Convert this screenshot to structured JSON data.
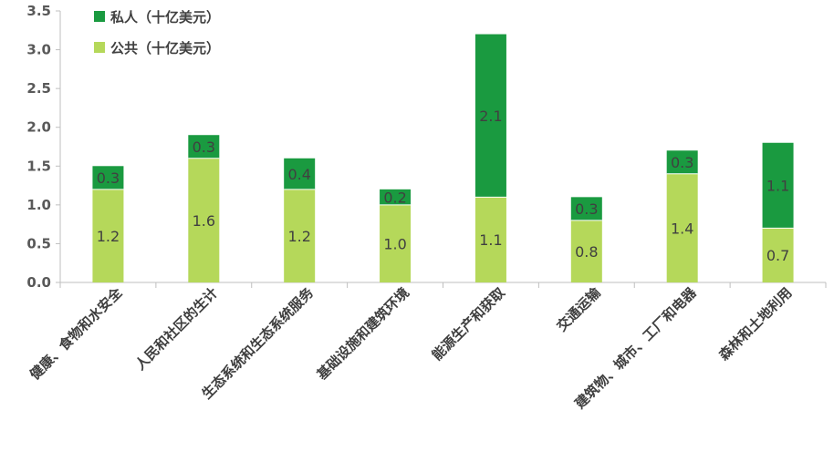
{
  "chart_data": {
    "type": "bar",
    "stacked": true,
    "categories": [
      "健康、食物和水安全",
      "人民和社区的生计",
      "生态系统和生态系统服务",
      "基础设施和建筑环境",
      "能源生产和获取",
      "交通运输",
      "建筑物、城市、工厂和电器",
      "森林和土地利用"
    ],
    "series": [
      {
        "name": "公共（十亿美元）",
        "values": [
          1.2,
          1.6,
          1.2,
          1.0,
          1.1,
          0.8,
          1.4,
          0.7
        ],
        "labels": [
          "1.2",
          "1.6",
          "1.2",
          "1.0",
          "1.1",
          "0.8",
          "1.4",
          "0.7"
        ]
      },
      {
        "name": "私人（十亿美元）",
        "values": [
          0.3,
          0.3,
          0.4,
          0.2,
          2.1,
          0.3,
          0.3,
          1.1
        ],
        "labels": [
          "0.3",
          "0.3",
          "0.4",
          "0.2",
          "2.1",
          "0.3",
          "0.3",
          "1.1"
        ]
      }
    ],
    "ylim": [
      0,
      3.5
    ],
    "yticks": [
      "0.0",
      "0.5",
      "1.0",
      "1.5",
      "2.0",
      "2.5",
      "3.0",
      "3.5"
    ],
    "legend_position": "top-left",
    "colors": {
      "public": "#b5d85a",
      "private": "#1a9a40"
    },
    "grid": false
  }
}
